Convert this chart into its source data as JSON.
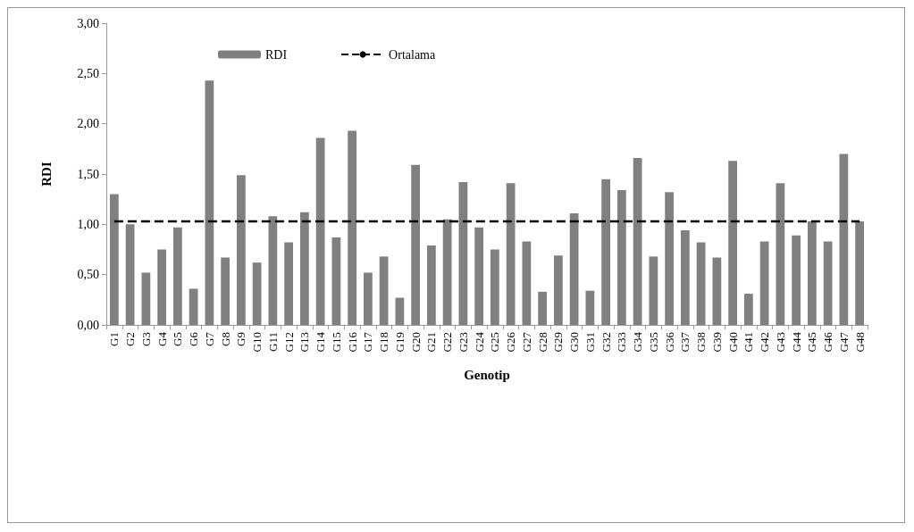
{
  "chart_data": {
    "type": "bar",
    "xlabel": "Genotip",
    "ylabel": "RDI",
    "categories": [
      "G1",
      "G2",
      "G3",
      "G4",
      "G5",
      "G6",
      "G7",
      "G8",
      "G9",
      "G10",
      "G11",
      "G12",
      "G13",
      "G14",
      "G15",
      "G16",
      "G17",
      "G18",
      "G19",
      "G20",
      "G21",
      "G22",
      "G23",
      "G24",
      "G25",
      "G26",
      "G27",
      "G28",
      "G29",
      "G30",
      "G31",
      "G32",
      "G33",
      "G34",
      "G35",
      "G36",
      "G37",
      "G38",
      "G39",
      "G40",
      "G41",
      "G42",
      "G43",
      "G44",
      "G45",
      "G46",
      "G47",
      "G48"
    ],
    "series": [
      {
        "name": "RDI",
        "color": "#808080",
        "values": [
          1.3,
          1.0,
          0.52,
          0.75,
          0.97,
          0.36,
          2.43,
          0.67,
          1.49,
          0.62,
          1.08,
          0.82,
          1.12,
          1.86,
          0.87,
          1.93,
          0.52,
          0.68,
          0.27,
          1.59,
          0.79,
          1.05,
          1.42,
          0.97,
          0.75,
          1.41,
          0.83,
          0.33,
          0.69,
          1.11,
          0.34,
          1.45,
          1.34,
          1.66,
          0.68,
          1.32,
          0.94,
          0.82,
          0.67,
          1.63,
          0.31,
          0.83,
          1.41,
          0.89,
          1.03,
          0.83,
          1.7,
          1.03
        ]
      },
      {
        "name": "Ortalama",
        "type": "line",
        "color": "#000000",
        "line_style": "dashed",
        "marker": "none",
        "values": [
          1.03,
          1.03,
          1.03,
          1.03,
          1.03,
          1.03,
          1.03,
          1.03,
          1.03,
          1.03,
          1.03,
          1.03,
          1.03,
          1.03,
          1.03,
          1.03,
          1.03,
          1.03,
          1.03,
          1.03,
          1.03,
          1.03,
          1.03,
          1.03,
          1.03,
          1.03,
          1.03,
          1.03,
          1.03,
          1.03,
          1.03,
          1.03,
          1.03,
          1.03,
          1.03,
          1.03,
          1.03,
          1.03,
          1.03,
          1.03,
          1.03,
          1.03,
          1.03,
          1.03,
          1.03,
          1.03,
          1.03,
          1.03
        ]
      }
    ],
    "ylim": [
      0,
      3
    ],
    "yticks": [
      {
        "value": 0,
        "label": "0,00"
      },
      {
        "value": 0.5,
        "label": "0,50"
      },
      {
        "value": 1,
        "label": "1,00"
      },
      {
        "value": 1.5,
        "label": "1,50"
      },
      {
        "value": 2,
        "label": "2,00"
      },
      {
        "value": 2.5,
        "label": "2,50"
      },
      {
        "value": 3,
        "label": "3,00"
      }
    ],
    "grid": false,
    "legend": "top"
  }
}
